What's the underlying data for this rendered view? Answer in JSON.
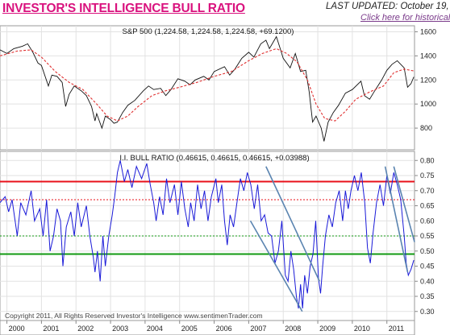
{
  "header": {
    "title": "INVESTOR'S INTELLIGENCE BULL RATIO",
    "last_updated": "LAST UPDATED:  October 19,",
    "link_text": "Click here for historical"
  },
  "footer": {
    "copyright": "Copyright 2011, All Rights Reserved  Investor's Intelligence  www.sentimenTrader.com"
  },
  "colors": {
    "title": "#d9127e",
    "price_line": "#111111",
    "moving_average": "#e03030",
    "bull_ratio_line": "#1a1ad8",
    "upper_line": "#e8101a",
    "lower_line": "#119911",
    "trend_lines": "#5a84b0"
  },
  "chart_data": [
    {
      "type": "line",
      "title": "S&P 500 (1,224.58, 1,224.58, 1,224.58, +69.1200)",
      "x_labels": [
        "2000",
        "2001",
        "2002",
        "2003",
        "2004",
        "2005",
        "2006",
        "2007",
        "2008",
        "2009",
        "2010",
        "2011"
      ],
      "x_range": [
        1999.8,
        2011.8
      ],
      "ylim": [
        620,
        1650
      ],
      "y_ticks": [
        800,
        1000,
        1200,
        1400,
        1600
      ],
      "grid": true,
      "series": [
        {
          "style": "price",
          "points": [
            [
              1999.8,
              1450
            ],
            [
              2000.0,
              1420
            ],
            [
              2000.2,
              1460
            ],
            [
              2000.45,
              1480
            ],
            [
              2000.6,
              1500
            ],
            [
              2000.75,
              1430
            ],
            [
              2000.9,
              1340
            ],
            [
              2001.0,
              1320
            ],
            [
              2001.2,
              1150
            ],
            [
              2001.3,
              1240
            ],
            [
              2001.45,
              1230
            ],
            [
              2001.6,
              1180
            ],
            [
              2001.7,
              980
            ],
            [
              2001.8,
              1080
            ],
            [
              2001.95,
              1150
            ],
            [
              2002.15,
              1110
            ],
            [
              2002.3,
              1070
            ],
            [
              2002.45,
              980
            ],
            [
              2002.55,
              860
            ],
            [
              2002.6,
              920
            ],
            [
              2002.75,
              800
            ],
            [
              2002.85,
              900
            ],
            [
              2003.0,
              870
            ],
            [
              2003.1,
              840
            ],
            [
              2003.2,
              850
            ],
            [
              2003.35,
              930
            ],
            [
              2003.5,
              990
            ],
            [
              2003.7,
              1030
            ],
            [
              2003.95,
              1110
            ],
            [
              2004.1,
              1150
            ],
            [
              2004.25,
              1120
            ],
            [
              2004.45,
              1130
            ],
            [
              2004.6,
              1070
            ],
            [
              2004.75,
              1120
            ],
            [
              2004.95,
              1210
            ],
            [
              2005.15,
              1190
            ],
            [
              2005.3,
              1160
            ],
            [
              2005.45,
              1200
            ],
            [
              2005.7,
              1230
            ],
            [
              2005.85,
              1200
            ],
            [
              2006.0,
              1270
            ],
            [
              2006.3,
              1310
            ],
            [
              2006.45,
              1240
            ],
            [
              2006.6,
              1290
            ],
            [
              2006.8,
              1380
            ],
            [
              2007.0,
              1430
            ],
            [
              2007.15,
              1390
            ],
            [
              2007.35,
              1500
            ],
            [
              2007.5,
              1530
            ],
            [
              2007.6,
              1460
            ],
            [
              2007.8,
              1560
            ],
            [
              2007.9,
              1470
            ],
            [
              2008.0,
              1380
            ],
            [
              2008.2,
              1300
            ],
            [
              2008.35,
              1420
            ],
            [
              2008.5,
              1270
            ],
            [
              2008.65,
              1280
            ],
            [
              2008.75,
              1100
            ],
            [
              2008.85,
              850
            ],
            [
              2008.95,
              900
            ],
            [
              2009.1,
              800
            ],
            [
              2009.18,
              690
            ],
            [
              2009.3,
              850
            ],
            [
              2009.45,
              930
            ],
            [
              2009.6,
              990
            ],
            [
              2009.8,
              1090
            ],
            [
              2010.0,
              1120
            ],
            [
              2010.25,
              1190
            ],
            [
              2010.35,
              1070
            ],
            [
              2010.5,
              1040
            ],
            [
              2010.65,
              1110
            ],
            [
              2010.85,
              1200
            ],
            [
              2011.0,
              1280
            ],
            [
              2011.15,
              1330
            ],
            [
              2011.3,
              1360
            ],
            [
              2011.5,
              1300
            ],
            [
              2011.6,
              1140
            ],
            [
              2011.7,
              1170
            ],
            [
              2011.78,
              1225
            ]
          ]
        },
        {
          "style": "moving_average",
          "points": [
            [
              1999.8,
              1400
            ],
            [
              2000.3,
              1440
            ],
            [
              2000.7,
              1450
            ],
            [
              2001.0,
              1390
            ],
            [
              2001.4,
              1270
            ],
            [
              2001.8,
              1180
            ],
            [
              2002.2,
              1120
            ],
            [
              2002.6,
              1000
            ],
            [
              2002.9,
              900
            ],
            [
              2003.2,
              860
            ],
            [
              2003.5,
              900
            ],
            [
              2003.8,
              980
            ],
            [
              2004.2,
              1070
            ],
            [
              2004.6,
              1110
            ],
            [
              2005.0,
              1140
            ],
            [
              2005.5,
              1180
            ],
            [
              2006.0,
              1230
            ],
            [
              2006.5,
              1270
            ],
            [
              2007.0,
              1360
            ],
            [
              2007.4,
              1420
            ],
            [
              2007.8,
              1460
            ],
            [
              2008.1,
              1420
            ],
            [
              2008.4,
              1350
            ],
            [
              2008.7,
              1200
            ],
            [
              2008.95,
              1000
            ],
            [
              2009.2,
              880
            ],
            [
              2009.5,
              860
            ],
            [
              2009.8,
              940
            ],
            [
              2010.1,
              1040
            ],
            [
              2010.5,
              1100
            ],
            [
              2010.9,
              1150
            ],
            [
              2011.2,
              1260
            ],
            [
              2011.5,
              1290
            ],
            [
              2011.78,
              1275
            ]
          ]
        }
      ]
    },
    {
      "type": "line",
      "title": "I.I. BULL RATIO (0.46615, 0.46615, 0.46615, +0.03988)",
      "x_labels": [
        "2000",
        "2001",
        "2002",
        "2003",
        "2004",
        "2005",
        "2006",
        "2007",
        "2008",
        "2009",
        "2010",
        "2011"
      ],
      "x_range": [
        1999.8,
        2011.8
      ],
      "ylim": [
        0.27,
        0.83
      ],
      "y_ticks": [
        0.3,
        0.35,
        0.4,
        0.45,
        0.5,
        0.55,
        0.6,
        0.65,
        0.7,
        0.75,
        0.8
      ],
      "grid": true,
      "reference_lines": [
        {
          "value": 0.73,
          "style": "upper"
        },
        {
          "value": 0.67,
          "style": "upper_dashed"
        },
        {
          "value": 0.55,
          "style": "lower_dashed"
        },
        {
          "value": 0.49,
          "style": "lower"
        }
      ],
      "trend_lines": [
        [
          [
            2007.05,
            0.6
          ],
          [
            2008.55,
            0.3
          ]
        ],
        [
          [
            2007.5,
            0.78
          ],
          [
            2009.05,
            0.4
          ]
        ],
        [
          [
            2010.95,
            0.78
          ],
          [
            2011.6,
            0.43
          ]
        ],
        [
          [
            2011.2,
            0.78
          ],
          [
            2011.8,
            0.53
          ]
        ]
      ],
      "series": [
        {
          "style": "bull_ratio",
          "points": [
            [
              1999.8,
              0.66
            ],
            [
              1999.95,
              0.68
            ],
            [
              2000.05,
              0.63
            ],
            [
              2000.15,
              0.67
            ],
            [
              2000.3,
              0.55
            ],
            [
              2000.4,
              0.66
            ],
            [
              2000.55,
              0.62
            ],
            [
              2000.7,
              0.7
            ],
            [
              2000.8,
              0.6
            ],
            [
              2000.95,
              0.64
            ],
            [
              2001.05,
              0.55
            ],
            [
              2001.15,
              0.67
            ],
            [
              2001.25,
              0.5
            ],
            [
              2001.35,
              0.55
            ],
            [
              2001.45,
              0.64
            ],
            [
              2001.55,
              0.6
            ],
            [
              2001.62,
              0.45
            ],
            [
              2001.72,
              0.58
            ],
            [
              2001.85,
              0.63
            ],
            [
              2001.95,
              0.55
            ],
            [
              2002.05,
              0.66
            ],
            [
              2002.15,
              0.58
            ],
            [
              2002.3,
              0.65
            ],
            [
              2002.4,
              0.55
            ],
            [
              2002.5,
              0.48
            ],
            [
              2002.55,
              0.43
            ],
            [
              2002.62,
              0.5
            ],
            [
              2002.7,
              0.4
            ],
            [
              2002.78,
              0.55
            ],
            [
              2002.85,
              0.45
            ],
            [
              2002.95,
              0.55
            ],
            [
              2003.05,
              0.62
            ],
            [
              2003.12,
              0.68
            ],
            [
              2003.2,
              0.76
            ],
            [
              2003.28,
              0.8
            ],
            [
              2003.4,
              0.73
            ],
            [
              2003.5,
              0.77
            ],
            [
              2003.62,
              0.71
            ],
            [
              2003.75,
              0.78
            ],
            [
              2003.9,
              0.74
            ],
            [
              2004.05,
              0.79
            ],
            [
              2004.15,
              0.72
            ],
            [
              2004.25,
              0.66
            ],
            [
              2004.32,
              0.6
            ],
            [
              2004.42,
              0.68
            ],
            [
              2004.52,
              0.62
            ],
            [
              2004.62,
              0.74
            ],
            [
              2004.72,
              0.66
            ],
            [
              2004.85,
              0.72
            ],
            [
              2004.95,
              0.62
            ],
            [
              2005.05,
              0.73
            ],
            [
              2005.15,
              0.64
            ],
            [
              2005.25,
              0.58
            ],
            [
              2005.32,
              0.66
            ],
            [
              2005.42,
              0.6
            ],
            [
              2005.52,
              0.72
            ],
            [
              2005.62,
              0.64
            ],
            [
              2005.72,
              0.7
            ],
            [
              2005.82,
              0.6
            ],
            [
              2005.92,
              0.68
            ],
            [
              2006.05,
              0.74
            ],
            [
              2006.12,
              0.66
            ],
            [
              2006.22,
              0.72
            ],
            [
              2006.3,
              0.6
            ],
            [
              2006.38,
              0.52
            ],
            [
              2006.46,
              0.62
            ],
            [
              2006.56,
              0.58
            ],
            [
              2006.66,
              0.66
            ],
            [
              2006.76,
              0.74
            ],
            [
              2006.86,
              0.7
            ],
            [
              2006.96,
              0.76
            ],
            [
              2007.06,
              0.72
            ],
            [
              2007.16,
              0.64
            ],
            [
              2007.26,
              0.72
            ],
            [
              2007.36,
              0.6
            ],
            [
              2007.46,
              0.62
            ],
            [
              2007.56,
              0.56
            ],
            [
              2007.66,
              0.55
            ],
            [
              2007.76,
              0.46
            ],
            [
              2007.86,
              0.5
            ],
            [
              2007.96,
              0.6
            ],
            [
              2008.06,
              0.42
            ],
            [
              2008.14,
              0.4
            ],
            [
              2008.22,
              0.5
            ],
            [
              2008.3,
              0.44
            ],
            [
              2008.38,
              0.35
            ],
            [
              2008.44,
              0.31
            ],
            [
              2008.5,
              0.39
            ],
            [
              2008.56,
              0.31
            ],
            [
              2008.62,
              0.42
            ],
            [
              2008.7,
              0.36
            ],
            [
              2008.78,
              0.45
            ],
            [
              2008.86,
              0.49
            ],
            [
              2008.94,
              0.6
            ],
            [
              2009.02,
              0.41
            ],
            [
              2009.08,
              0.36
            ],
            [
              2009.14,
              0.45
            ],
            [
              2009.22,
              0.55
            ],
            [
              2009.32,
              0.62
            ],
            [
              2009.42,
              0.58
            ],
            [
              2009.52,
              0.66
            ],
            [
              2009.62,
              0.7
            ],
            [
              2009.72,
              0.6
            ],
            [
              2009.8,
              0.7
            ],
            [
              2009.88,
              0.64
            ],
            [
              2009.96,
              0.7
            ],
            [
              2010.06,
              0.75
            ],
            [
              2010.16,
              0.7
            ],
            [
              2010.26,
              0.76
            ],
            [
              2010.36,
              0.66
            ],
            [
              2010.44,
              0.51
            ],
            [
              2010.52,
              0.46
            ],
            [
              2010.6,
              0.56
            ],
            [
              2010.7,
              0.66
            ],
            [
              2010.8,
              0.72
            ],
            [
              2010.9,
              0.65
            ],
            [
              2011.0,
              0.75
            ],
            [
              2011.1,
              0.69
            ],
            [
              2011.2,
              0.76
            ],
            [
              2011.3,
              0.72
            ],
            [
              2011.4,
              0.67
            ],
            [
              2011.5,
              0.55
            ],
            [
              2011.56,
              0.46
            ],
            [
              2011.62,
              0.42
            ],
            [
              2011.7,
              0.44
            ],
            [
              2011.78,
              0.47
            ]
          ]
        }
      ]
    }
  ]
}
